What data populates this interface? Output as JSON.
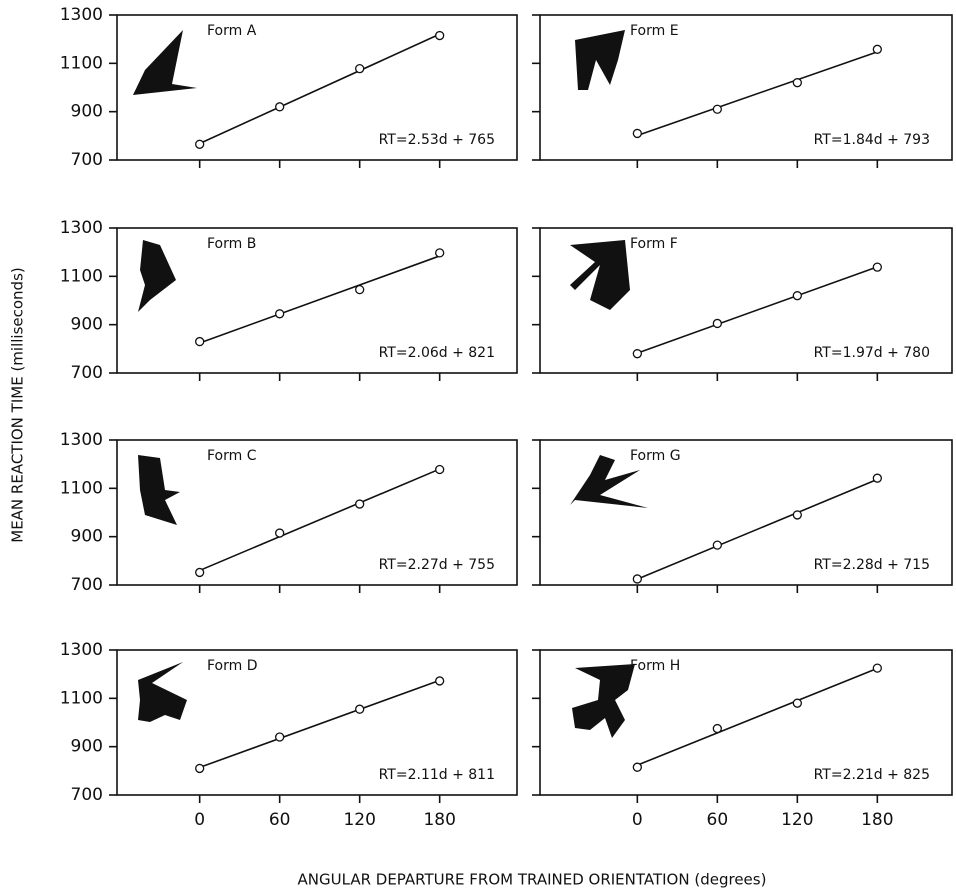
{
  "ylabel": "MEAN REACTION TIME (milliseconds)",
  "xlabel": "ANGULAR DEPARTURE FROM TRAINED ORIENTATION (degrees)",
  "chart_data": [
    {
      "type": "line",
      "title": "Form A",
      "annotation": "RT=2.53d + 765",
      "x": [
        0,
        60,
        120,
        180
      ],
      "values": [
        765,
        920,
        1078,
        1215
      ],
      "xlim": [
        -62,
        238
      ],
      "xticks": [
        0,
        60,
        120,
        180
      ],
      "ylim": [
        700,
        1300
      ],
      "yticks": [
        700,
        900,
        1100,
        1300
      ],
      "color": "#111111"
    },
    {
      "type": "line",
      "title": "Form B",
      "annotation": "RT=2.06d + 821",
      "x": [
        0,
        60,
        120,
        180
      ],
      "values": [
        830,
        945,
        1045,
        1197
      ],
      "xlim": [
        -62,
        238
      ],
      "xticks": [
        0,
        60,
        120,
        180
      ],
      "ylim": [
        700,
        1300
      ],
      "yticks": [
        700,
        900,
        1100,
        1300
      ],
      "color": "#111111"
    },
    {
      "type": "line",
      "title": "Form C",
      "annotation": "RT=2.27d + 755",
      "x": [
        0,
        60,
        120,
        180
      ],
      "values": [
        752,
        915,
        1035,
        1178
      ],
      "xlim": [
        -62,
        238
      ],
      "xticks": [
        0,
        60,
        120,
        180
      ],
      "ylim": [
        700,
        1300
      ],
      "yticks": [
        700,
        900,
        1100,
        1300
      ],
      "color": "#111111"
    },
    {
      "type": "line",
      "title": "Form D",
      "annotation": "RT=2.11d + 811",
      "x": [
        0,
        60,
        120,
        180
      ],
      "values": [
        810,
        940,
        1055,
        1172
      ],
      "xlim": [
        -62,
        238
      ],
      "xticks": [
        0,
        60,
        120,
        180
      ],
      "ylim": [
        700,
        1300
      ],
      "yticks": [
        700,
        900,
        1100,
        1300
      ],
      "color": "#111111"
    },
    {
      "type": "line",
      "title": "Form E",
      "annotation": "RT=1.84d + 793",
      "x": [
        0,
        60,
        120,
        180
      ],
      "values": [
        810,
        910,
        1020,
        1158
      ],
      "xlim": [
        -73,
        236
      ],
      "xticks": [
        0,
        60,
        120,
        180
      ],
      "ylim": [
        700,
        1300
      ],
      "yticks": [
        700,
        900,
        1100,
        1300
      ],
      "color": "#111111"
    },
    {
      "type": "line",
      "title": "Form F",
      "annotation": "RT=1.97d + 780",
      "x": [
        0,
        60,
        120,
        180
      ],
      "values": [
        780,
        905,
        1020,
        1138
      ],
      "xlim": [
        -73,
        236
      ],
      "xticks": [
        0,
        60,
        120,
        180
      ],
      "ylim": [
        700,
        1300
      ],
      "yticks": [
        700,
        900,
        1100,
        1300
      ],
      "color": "#111111"
    },
    {
      "type": "line",
      "title": "Form G",
      "annotation": "RT=2.28d + 715",
      "x": [
        0,
        60,
        120,
        180
      ],
      "values": [
        725,
        865,
        990,
        1142
      ],
      "xlim": [
        -73,
        236
      ],
      "xticks": [
        0,
        60,
        120,
        180
      ],
      "ylim": [
        700,
        1300
      ],
      "yticks": [
        700,
        900,
        1100,
        1300
      ],
      "color": "#111111"
    },
    {
      "type": "line",
      "title": "Form H",
      "annotation": "RT=2.21d + 825",
      "x": [
        0,
        60,
        120,
        180
      ],
      "values": [
        815,
        975,
        1080,
        1225
      ],
      "xlim": [
        -73,
        236
      ],
      "xticks": [
        0,
        60,
        120,
        180
      ],
      "ylim": [
        700,
        1300
      ],
      "yticks": [
        700,
        900,
        1100,
        1300
      ],
      "color": "#111111"
    }
  ]
}
